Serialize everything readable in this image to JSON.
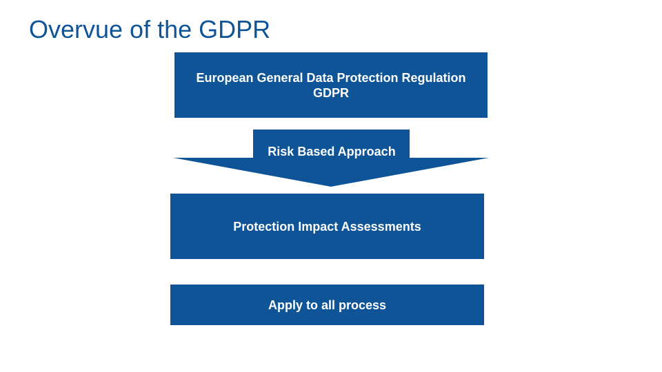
{
  "slide": {
    "title": "Overvue of the GDPR"
  },
  "diagram": {
    "regulation_box": {
      "line1": "European General Data Protection Regulation",
      "line2": "GDPR"
    },
    "arrow": {
      "label": "Risk Based Approach"
    },
    "assessment_box": {
      "label": "Protection Impact Assessments"
    },
    "apply_box": {
      "label": "Apply to all process"
    }
  },
  "colors": {
    "primary": "#0e5497",
    "text_on_primary": "#ffffff",
    "background": "#ffffff"
  }
}
